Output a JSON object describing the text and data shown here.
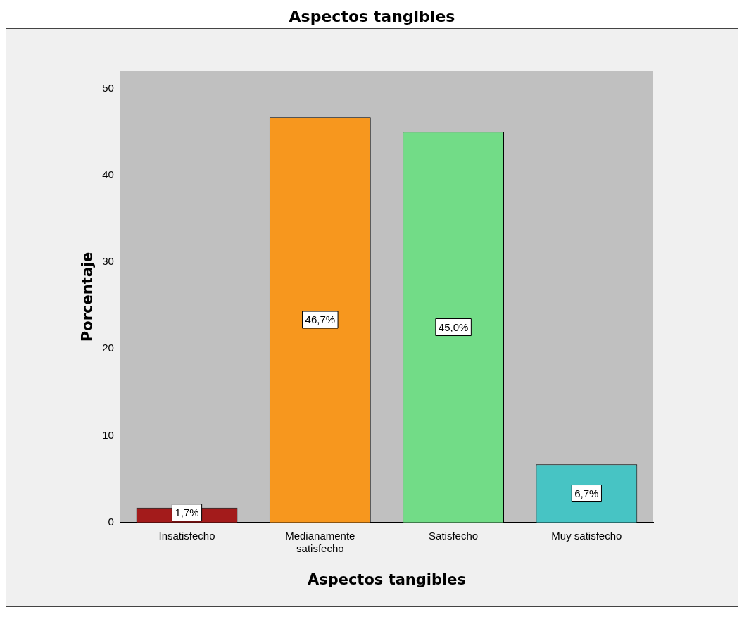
{
  "chart_data": {
    "type": "bar",
    "title": "Aspectos tangibles",
    "xlabel": "Aspectos tangibles",
    "ylabel": "Porcentaje",
    "categories": [
      "Insatisfecho",
      "Medianamente satisfecho",
      "Satisfecho",
      "Muy satisfecho"
    ],
    "values": [
      1.7,
      46.7,
      45.0,
      6.7
    ],
    "colors": [
      "#a31b1b",
      "#f7971e",
      "#72dc87",
      "#47c4c4"
    ],
    "value_labels": [
      "1,7%",
      "46,7%",
      "45,0%",
      "6,7%"
    ],
    "ylim": [
      0,
      52
    ],
    "yticks": [
      0,
      10,
      20,
      30,
      40,
      50
    ],
    "grid": false,
    "legend": false
  }
}
